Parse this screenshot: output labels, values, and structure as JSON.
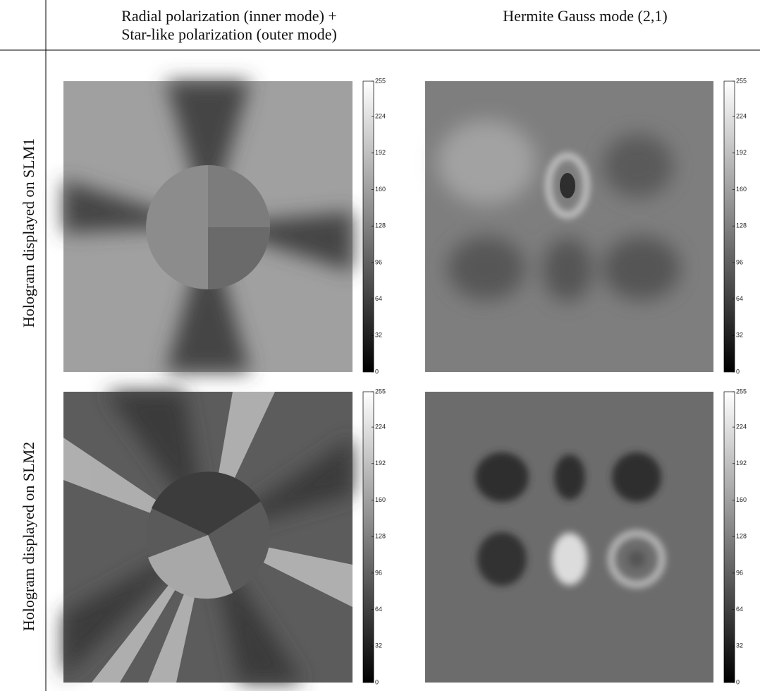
{
  "header": {
    "columns": [
      [
        "Radial polarization (inner mode) +",
        "Star-like polarization (outer mode)"
      ],
      [
        "Hermite Gauss mode (2,1)"
      ]
    ]
  },
  "rows": [
    {
      "label": "Hologram displayed on SLM1",
      "panels": [
        {
          "colorbar_ticks": [
            0,
            32,
            64,
            96,
            128,
            160,
            192,
            224,
            255
          ]
        },
        {
          "colorbar_ticks": [
            0,
            32,
            64,
            96,
            128,
            160,
            192,
            224,
            255
          ]
        }
      ]
    },
    {
      "label": "Hologram displayed on SLM2",
      "panels": [
        {
          "colorbar_ticks": [
            0,
            32,
            64,
            96,
            128,
            160,
            192,
            224,
            255
          ]
        },
        {
          "colorbar_ticks": [
            0,
            32,
            64,
            96,
            128,
            160,
            192,
            224,
            255
          ]
        }
      ]
    }
  ]
}
